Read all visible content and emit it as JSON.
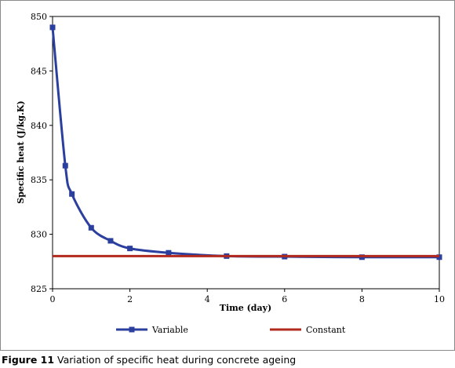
{
  "caption": {
    "label": "Figure 11",
    "text": "Variation of specific heat during concrete ageing"
  },
  "chart_data": {
    "type": "line",
    "title": "",
    "xlabel": "Time (day)",
    "ylabel": "Specific heat (J/kg.K)",
    "xlim": [
      0,
      10
    ],
    "ylim": [
      825,
      850
    ],
    "xticks": [
      0,
      2,
      4,
      6,
      8,
      10
    ],
    "yticks": [
      825,
      830,
      835,
      840,
      845,
      850
    ],
    "grid": false,
    "legend": "bottom",
    "series": [
      {
        "name": "Variable",
        "color": "#2b3f9e",
        "marker": "square",
        "smooth": true,
        "x": [
          0,
          0.33,
          0.5,
          1,
          1.5,
          2,
          3,
          4.5,
          6,
          8,
          10
        ],
        "y": [
          849,
          836.3,
          833.7,
          830.6,
          829.4,
          828.7,
          828.3,
          828.0,
          827.95,
          827.9,
          827.9
        ]
      },
      {
        "name": "Constant",
        "color": "#b22a1e",
        "marker": "none",
        "smooth": false,
        "x": [
          0,
          10
        ],
        "y": [
          828,
          828
        ]
      }
    ]
  }
}
